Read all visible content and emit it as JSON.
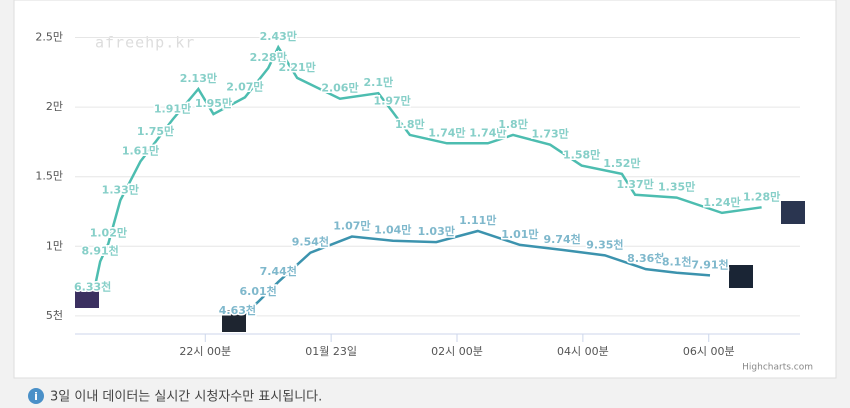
{
  "chart_data": {
    "type": "line",
    "watermark": "afreehp.kr",
    "credits": "Highcharts.com",
    "footnote_icon": "i",
    "footnote": "3일 이내 데이터는 실시간 시청자수만 표시됩니다.",
    "xlim": [
      19.93,
      31.45
    ],
    "xticks": [
      {
        "value": 22,
        "label": "22시 00분"
      },
      {
        "value": 24,
        "label": "01월 23일"
      },
      {
        "value": 26,
        "label": "02시 00분"
      },
      {
        "value": 28,
        "label": "04시 00분"
      },
      {
        "value": 30,
        "label": "06시 00분"
      }
    ],
    "ylim": [
      3700,
      26400
    ],
    "yticks": [
      {
        "value": 5000,
        "label": "5천"
      },
      {
        "value": 10000,
        "label": "1만"
      },
      {
        "value": 15000,
        "label": "1.5만"
      },
      {
        "value": 20000,
        "label": "2만"
      },
      {
        "value": 25000,
        "label": "2.5만"
      }
    ],
    "grid": true,
    "series": [
      {
        "color": "#4dbdb0",
        "label_color": "#86cfc8",
        "x": [
          20.21,
          20.33,
          20.46,
          20.65,
          20.97,
          21.21,
          21.48,
          21.89,
          22.13,
          22.63,
          23.0,
          23.16,
          23.46,
          24.14,
          24.75,
          24.97,
          25.25,
          25.84,
          26.49,
          26.89,
          27.48,
          27.98,
          28.62,
          28.83,
          29.49,
          30.21,
          30.84
        ],
        "values": [
          6330,
          8910,
          10200,
          13300,
          16100,
          17500,
          19100,
          21300,
          19500,
          20700,
          22800,
          24300,
          22100,
          20600,
          21000,
          19700,
          18000,
          17400,
          17400,
          18000,
          17300,
          15800,
          15200,
          13700,
          13500,
          12400,
          12800
        ],
        "value_labels": [
          "6.33천",
          "8.91천",
          "1.02만",
          "1.33만",
          "1.61만",
          "1.75만",
          "1.91만",
          "2.13만",
          "1.95만",
          "2.07만",
          "2.28만",
          "2.43만",
          "2.21만",
          "2.06만",
          "2.1만",
          "1.97만",
          "1.8만",
          "1.74만",
          "1.74만",
          "1.8만",
          "1.73만",
          "1.58만",
          "1.52만",
          "1.37만",
          "1.35만",
          "1.24만",
          "1.28만"
        ]
      },
      {
        "color": "#3c93ae",
        "label_color": "#7fb8cc",
        "x": [
          22.51,
          22.84,
          23.16,
          23.67,
          24.33,
          24.98,
          25.67,
          26.33,
          27.0,
          27.67,
          28.35,
          29.0,
          29.49,
          30.02
        ],
        "values": [
          4630,
          6010,
          7440,
          9540,
          10700,
          10400,
          10300,
          11100,
          10100,
          9740,
          9350,
          8360,
          8100,
          7910
        ],
        "value_labels": [
          "4.63천",
          "6.01천",
          "7.44천",
          "9.54천",
          "1.07만",
          "1.04만",
          "1.03만",
          "1.11만",
          "1.01만",
          "9.74천",
          "9.35천",
          "8.36천",
          "8.1천",
          "7.91천"
        ]
      }
    ]
  }
}
